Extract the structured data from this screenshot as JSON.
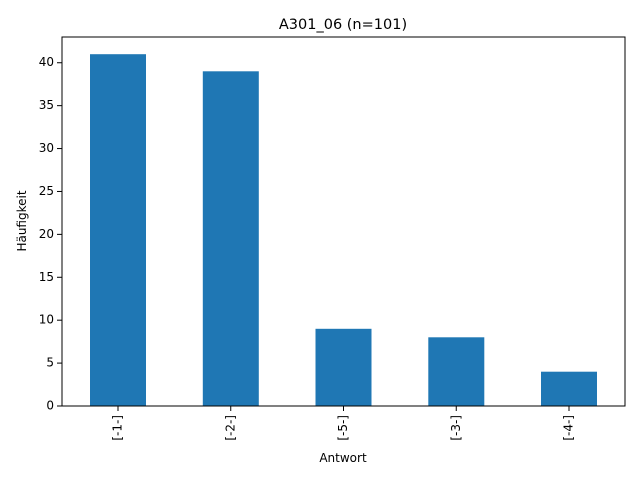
{
  "chart_data": {
    "type": "bar",
    "title": "A301_06 (n=101)",
    "xlabel": "Antwort",
    "ylabel": "Häufigkeit",
    "categories": [
      "[-1-]",
      "[-2-]",
      "[-5-]",
      "[-3-]",
      "[-4-]"
    ],
    "values": [
      41,
      39,
      9,
      8,
      4
    ],
    "ylim": [
      0,
      43
    ],
    "yticks": [
      0,
      5,
      10,
      15,
      20,
      25,
      30,
      35,
      40
    ],
    "bar_color": "#1f77b4",
    "grid": false,
    "legend": "none"
  }
}
